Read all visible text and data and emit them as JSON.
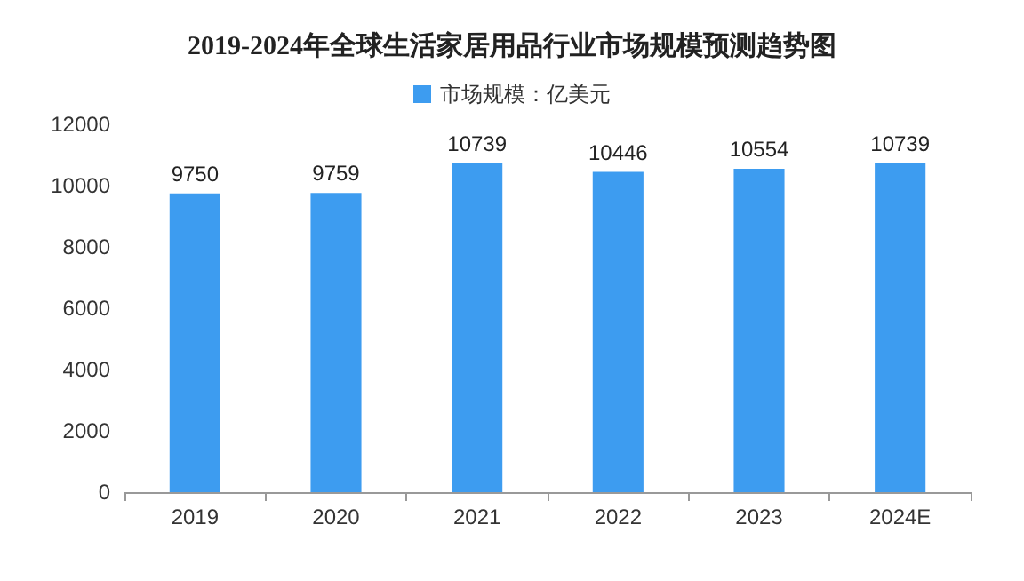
{
  "chart_data": {
    "type": "bar",
    "title": "2019-2024年全球生活家居用品行业市场规模预测趋势图",
    "categories": [
      "2019",
      "2020",
      "2021",
      "2022",
      "2023",
      "2024E"
    ],
    "series": [
      {
        "name": "市场规模：亿美元",
        "color": "#3d9cf0",
        "values": [
          9750,
          9759,
          10739,
          10446,
          10554,
          10739
        ]
      }
    ],
    "ylim": [
      0,
      12000
    ],
    "yticks": [
      0,
      2000,
      4000,
      6000,
      8000,
      10000,
      12000
    ],
    "grid": false,
    "legend": "top",
    "data_labels": true
  }
}
